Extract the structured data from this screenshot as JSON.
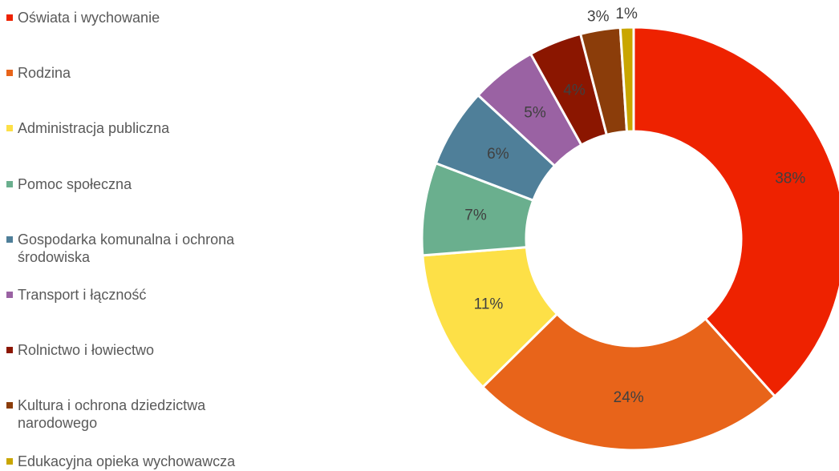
{
  "chart_data": {
    "type": "donut",
    "categories": [
      "Oświata i wychowanie",
      "Rodzina",
      "Administracja publiczna",
      "Pomoc społeczna",
      "Gospodarka komunalna i ochrona środowiska",
      "Transport i łączność",
      "Rolnictwo i łowiectwo",
      "Kultura i ochrona dziedzictwa narodowego",
      "Edukacyjna opieka wychowawcza"
    ],
    "values": [
      38,
      24,
      11,
      7,
      6,
      5,
      4,
      3,
      1
    ],
    "value_labels": [
      "38%",
      "24%",
      "11%",
      "7%",
      "6%",
      "5%",
      "4%",
      "3%",
      "1%"
    ],
    "colors": [
      "#ee2200",
      "#e8641a",
      "#fde047",
      "#6aaf8e",
      "#4f7f99",
      "#9a62a3",
      "#8b1600",
      "#8b3d0a",
      "#c9a600"
    ],
    "legend": "left"
  }
}
